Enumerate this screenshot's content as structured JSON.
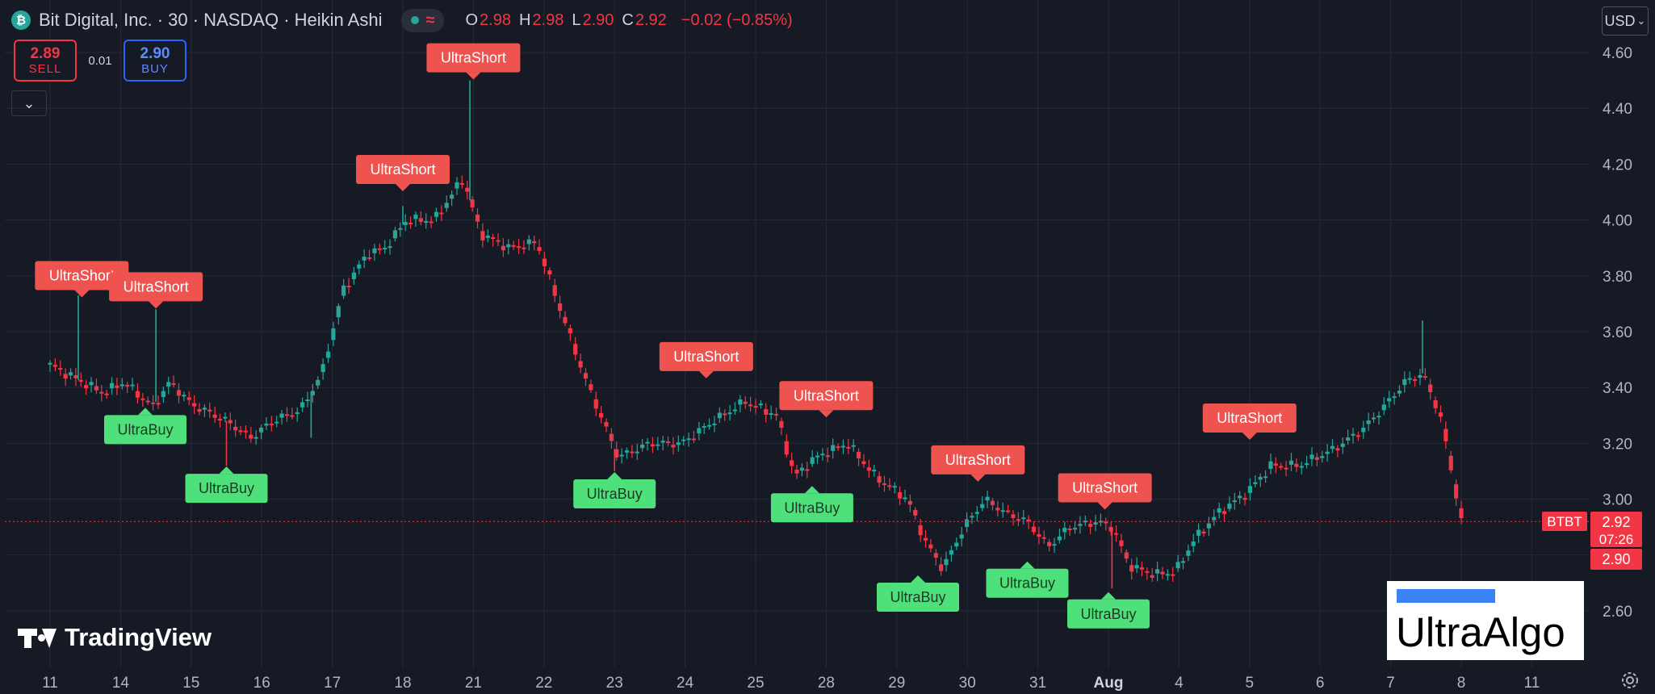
{
  "header": {
    "symbol_logo": "₿",
    "title": "Bit Digital, Inc. · 30 · NASDAQ · Heikin Ashi",
    "indicator_wave_icon": "≈",
    "ohlc": [
      {
        "key": "O",
        "value": "2.98"
      },
      {
        "key": "H",
        "value": "2.98"
      },
      {
        "key": "L",
        "value": "2.90"
      },
      {
        "key": "C",
        "value": "2.92"
      }
    ],
    "change": "−0.02 (−0.85%)"
  },
  "trade": {
    "sell_price": "2.89",
    "sell_label": "SELL",
    "spread": "0.01",
    "buy_price": "2.90",
    "buy_label": "BUY"
  },
  "controls": {
    "collapse_icon": "⌄",
    "currency": "USD",
    "currency_caret": "⌄"
  },
  "branding": {
    "tradingview": "TradingView",
    "watermark": "UltraAlgo"
  },
  "colors": {
    "background": "#161a25",
    "up": "#26a69a",
    "down": "#f23645",
    "short_label": "#ef5350",
    "buy_label": "#4ee07a",
    "grid": "#252a35"
  },
  "chart_data": {
    "type": "candlestick",
    "style": "Heikin Ashi",
    "symbol": "BTBT",
    "interval": "30",
    "ylim": [
      2.48,
      4.66
    ],
    "yticks": [
      2.6,
      2.8,
      3.0,
      3.2,
      3.4,
      3.6,
      3.8,
      4.0,
      4.2,
      4.4,
      4.6
    ],
    "ytick_labels": [
      "2.60",
      "",
      "3.00",
      "3.20",
      "3.40",
      "3.60",
      "3.80",
      "4.00",
      "4.20",
      "4.40",
      "4.60"
    ],
    "grid": true,
    "xticks": [
      "11",
      "14",
      "15",
      "16",
      "17",
      "18",
      "21",
      "22",
      "23",
      "24",
      "25",
      "28",
      "29",
      "30",
      "31",
      "Aug",
      "4",
      "5",
      "6",
      "7",
      "8",
      "11"
    ],
    "xticks_bold": [
      "Aug"
    ],
    "last_price": 2.92,
    "last_price_label": "2.92",
    "countdown": "07:26",
    "bid_price": 2.9,
    "bid_price_label": "2.90",
    "symbol_tag": "BTBT",
    "close_path": [
      {
        "x": 0,
        "y": 3.48
      },
      {
        "x": 0.45,
        "y": 3.42
      },
      {
        "x": 0.75,
        "y": 3.38
      },
      {
        "x": 1.05,
        "y": 3.42
      },
      {
        "x": 1.45,
        "y": 3.33
      },
      {
        "x": 1.7,
        "y": 3.42
      },
      {
        "x": 2.0,
        "y": 3.34
      },
      {
        "x": 2.5,
        "y": 3.28
      },
      {
        "x": 2.85,
        "y": 3.22
      },
      {
        "x": 3.15,
        "y": 3.28
      },
      {
        "x": 3.55,
        "y": 3.32
      },
      {
        "x": 3.85,
        "y": 3.45
      },
      {
        "x": 4.15,
        "y": 3.75
      },
      {
        "x": 4.5,
        "y": 3.88
      },
      {
        "x": 4.75,
        "y": 3.9
      },
      {
        "x": 5.05,
        "y": 4.0
      },
      {
        "x": 5.45,
        "y": 4.0
      },
      {
        "x": 5.85,
        "y": 4.15
      },
      {
        "x": 6.1,
        "y": 3.95
      },
      {
        "x": 6.5,
        "y": 3.9
      },
      {
        "x": 6.9,
        "y": 3.92
      },
      {
        "x": 7.2,
        "y": 3.7
      },
      {
        "x": 7.6,
        "y": 3.42
      },
      {
        "x": 8.05,
        "y": 3.15
      },
      {
        "x": 8.5,
        "y": 3.2
      },
      {
        "x": 8.95,
        "y": 3.2
      },
      {
        "x": 9.4,
        "y": 3.28
      },
      {
        "x": 9.85,
        "y": 3.35
      },
      {
        "x": 10.3,
        "y": 3.3
      },
      {
        "x": 10.55,
        "y": 3.08
      },
      {
        "x": 10.85,
        "y": 3.15
      },
      {
        "x": 11.3,
        "y": 3.2
      },
      {
        "x": 11.7,
        "y": 3.08
      },
      {
        "x": 12.15,
        "y": 3.0
      },
      {
        "x": 12.4,
        "y": 2.85
      },
      {
        "x": 12.65,
        "y": 2.75
      },
      {
        "x": 12.95,
        "y": 2.9
      },
      {
        "x": 13.25,
        "y": 3.0
      },
      {
        "x": 13.55,
        "y": 2.95
      },
      {
        "x": 13.85,
        "y": 2.92
      },
      {
        "x": 14.15,
        "y": 2.83
      },
      {
        "x": 14.45,
        "y": 2.9
      },
      {
        "x": 14.85,
        "y": 2.92
      },
      {
        "x": 15.05,
        "y": 2.9
      },
      {
        "x": 15.3,
        "y": 2.76
      },
      {
        "x": 15.65,
        "y": 2.73
      },
      {
        "x": 15.95,
        "y": 2.74
      },
      {
        "x": 16.2,
        "y": 2.85
      },
      {
        "x": 16.55,
        "y": 2.95
      },
      {
        "x": 16.95,
        "y": 3.02
      },
      {
        "x": 17.3,
        "y": 3.12
      },
      {
        "x": 17.7,
        "y": 3.12
      },
      {
        "x": 18.2,
        "y": 3.18
      },
      {
        "x": 18.6,
        "y": 3.25
      },
      {
        "x": 18.9,
        "y": 3.33
      },
      {
        "x": 19.2,
        "y": 3.42
      },
      {
        "x": 19.45,
        "y": 3.45
      },
      {
        "x": 19.7,
        "y": 3.3
      },
      {
        "x": 19.9,
        "y": 3.05
      },
      {
        "x": 20.0,
        "y": 2.92
      }
    ],
    "spikes": [
      {
        "x": 0.4,
        "y": 3.73,
        "kind": "high"
      },
      {
        "x": 1.5,
        "y": 3.68,
        "kind": "high"
      },
      {
        "x": 3.7,
        "y": 3.22,
        "kind": "high"
      },
      {
        "x": 5.0,
        "y": 4.05,
        "kind": "high"
      },
      {
        "x": 5.95,
        "y": 4.5,
        "kind": "high"
      },
      {
        "x": 19.45,
        "y": 3.64,
        "kind": "high"
      },
      {
        "x": 2.5,
        "y": 3.12,
        "kind": "low"
      },
      {
        "x": 8.0,
        "y": 3.1,
        "kind": "low"
      },
      {
        "x": 15.05,
        "y": 2.68,
        "kind": "low"
      }
    ],
    "signals": [
      {
        "label": "UltraShort",
        "x": 0.45,
        "y": 3.72,
        "side": "short"
      },
      {
        "label": "UltraShort",
        "x": 1.5,
        "y": 3.68,
        "side": "short"
      },
      {
        "label": "UltraShort",
        "x": 5.0,
        "y": 4.1,
        "side": "short"
      },
      {
        "label": "UltraShort",
        "x": 6.0,
        "y": 4.5,
        "side": "short"
      },
      {
        "label": "UltraShort",
        "x": 9.3,
        "y": 3.43,
        "side": "short"
      },
      {
        "label": "UltraShort",
        "x": 11.0,
        "y": 3.29,
        "side": "short"
      },
      {
        "label": "UltraShort",
        "x": 13.15,
        "y": 3.06,
        "side": "short"
      },
      {
        "label": "UltraShort",
        "x": 14.95,
        "y": 2.96,
        "side": "short"
      },
      {
        "label": "UltraShort",
        "x": 17.0,
        "y": 3.21,
        "side": "short"
      },
      {
        "label": "UltraBuy",
        "x": 1.35,
        "y": 3.33,
        "side": "buy"
      },
      {
        "label": "UltraBuy",
        "x": 2.5,
        "y": 3.12,
        "side": "buy"
      },
      {
        "label": "UltraBuy",
        "x": 8.0,
        "y": 3.1,
        "side": "buy"
      },
      {
        "label": "UltraBuy",
        "x": 10.8,
        "y": 3.05,
        "side": "buy"
      },
      {
        "label": "UltraBuy",
        "x": 12.3,
        "y": 2.73,
        "side": "buy"
      },
      {
        "label": "UltraBuy",
        "x": 13.85,
        "y": 2.78,
        "side": "buy"
      },
      {
        "label": "UltraBuy",
        "x": 15.0,
        "y": 2.67,
        "side": "buy"
      }
    ]
  }
}
